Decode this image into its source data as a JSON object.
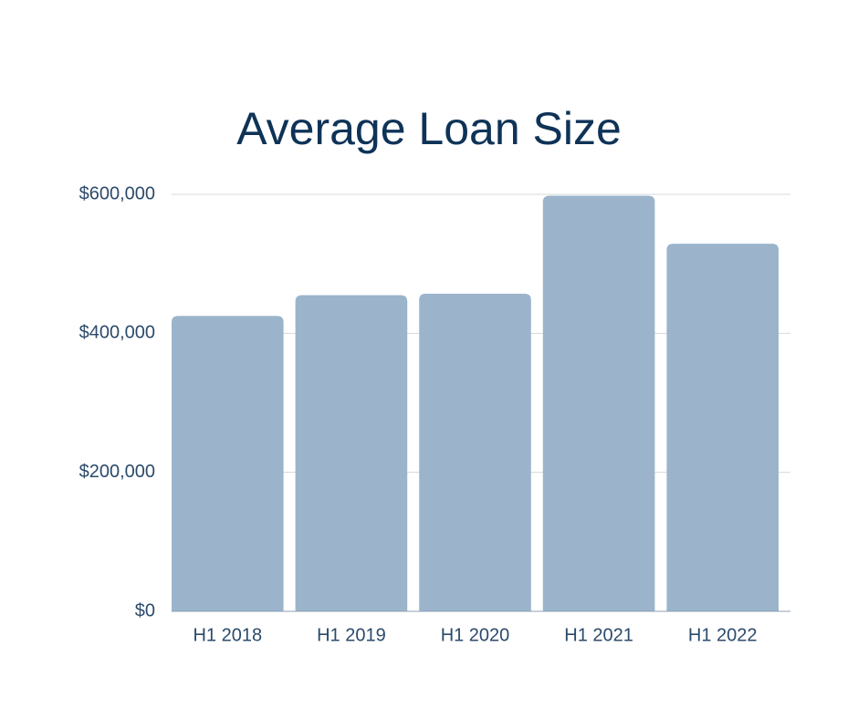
{
  "chart_data": {
    "type": "bar",
    "title": "Average Loan Size",
    "categories": [
      "H1 2018",
      "H1 2019",
      "H1 2020",
      "H1 2021",
      "H1 2022"
    ],
    "values": [
      425000,
      455000,
      457000,
      598000,
      529000
    ],
    "color": "#9bb4cb",
    "ylim": [
      0,
      600000
    ],
    "yticks": [
      {
        "value": 0,
        "label": "$0"
      },
      {
        "value": 200000,
        "label": "$200,000"
      },
      {
        "value": 400000,
        "label": "$400,000"
      },
      {
        "value": 600000,
        "label": "$600,000"
      }
    ],
    "grid": true
  }
}
